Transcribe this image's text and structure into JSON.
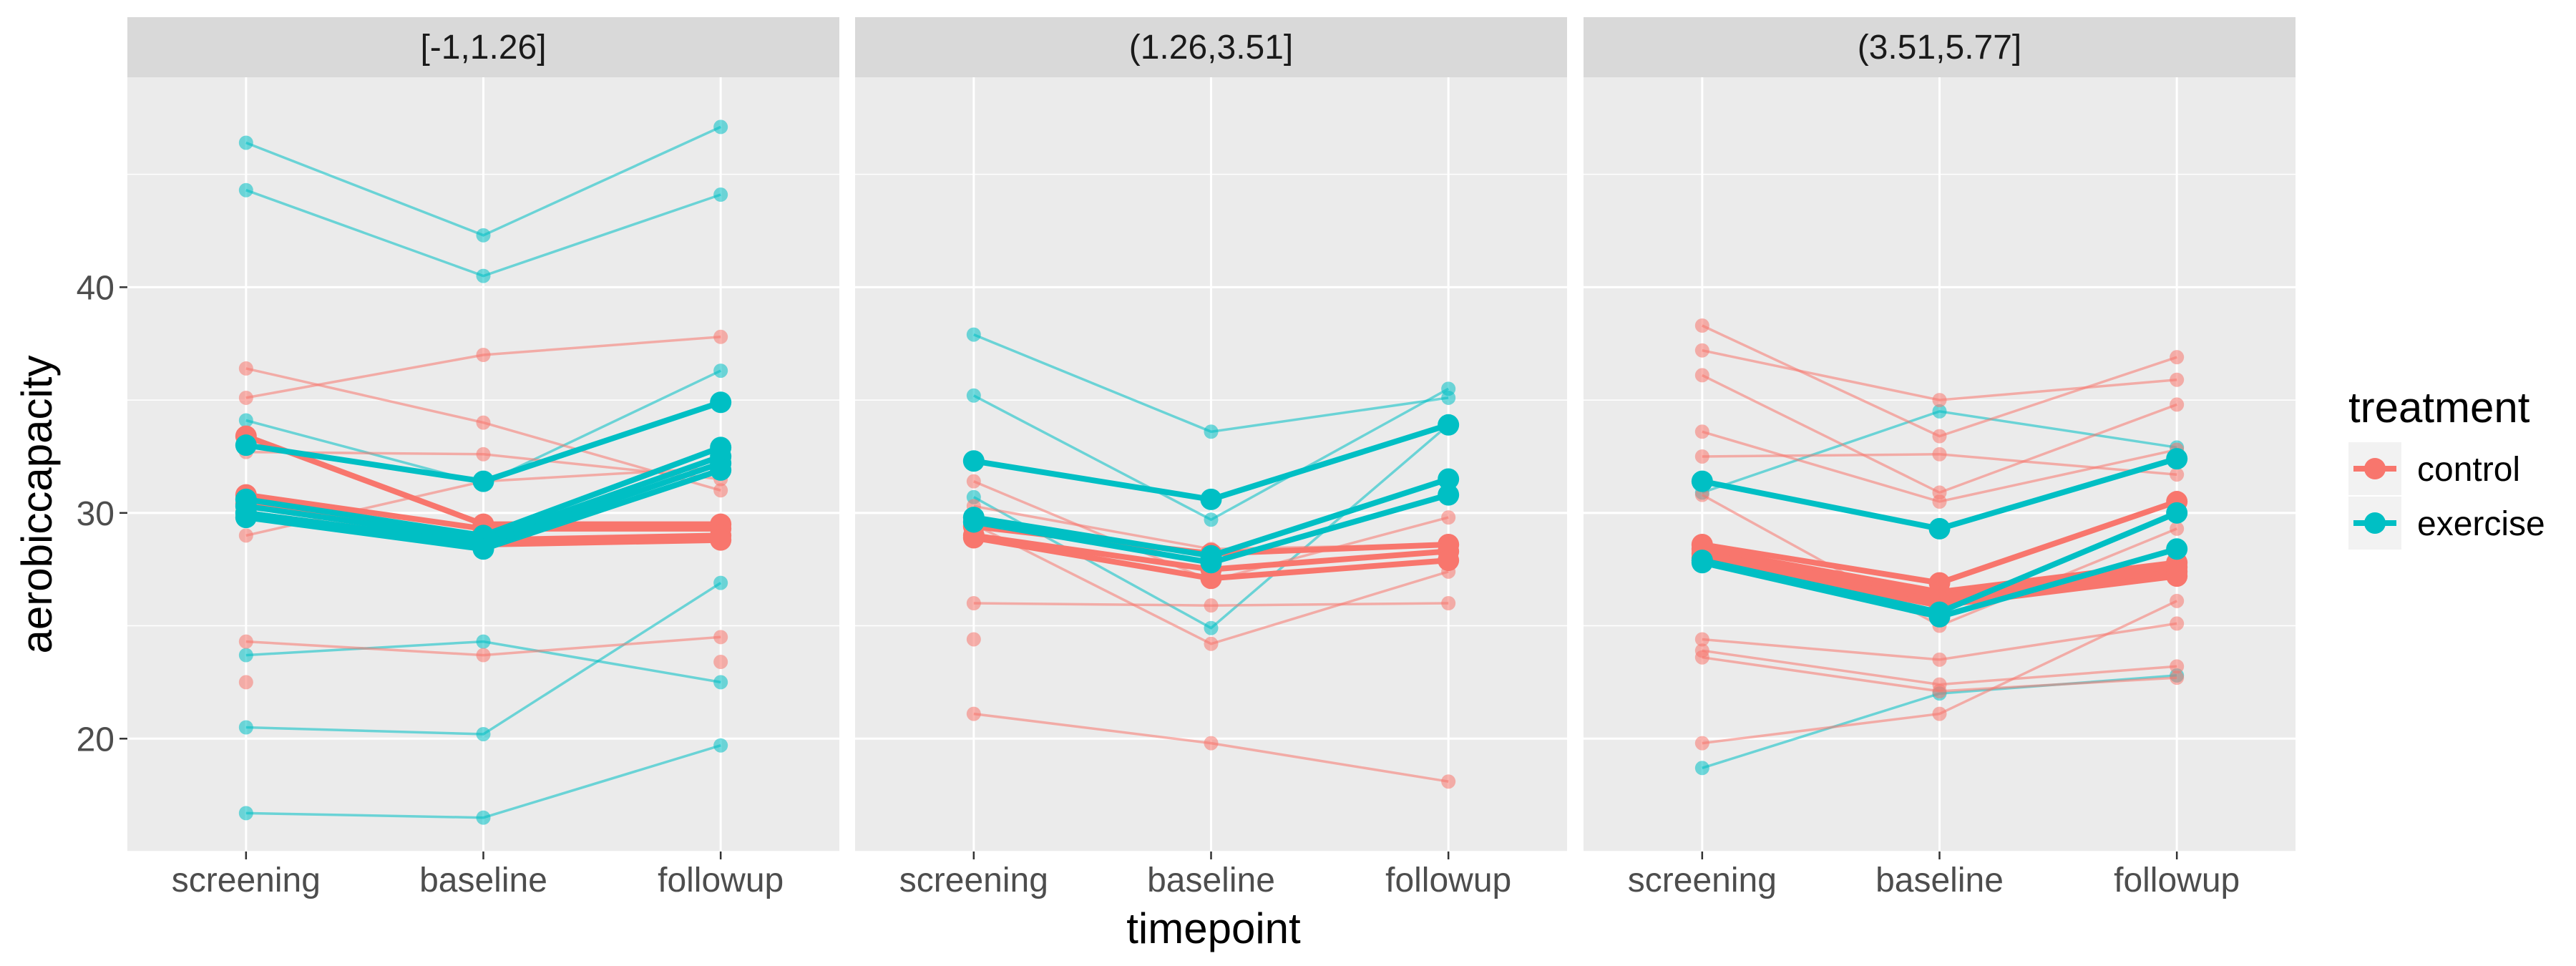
{
  "chart_data": {
    "type": "line",
    "xlabel": "timepoint",
    "ylabel": "aerobiccapacity",
    "categories": [
      "screening",
      "baseline",
      "followup"
    ],
    "ylim": [
      15.0,
      49.3
    ],
    "yticks": [
      20,
      30,
      40
    ],
    "grid": true,
    "legend": {
      "title": "treatment",
      "position": "right",
      "entries": [
        {
          "name": "control",
          "color": "#F8766D"
        },
        {
          "name": "exercise",
          "color": "#00BFC4"
        }
      ]
    },
    "panels": [
      {
        "label": "[-1,1.26]",
        "individuals": [
          {
            "group": "exercise",
            "values": [
              46.4,
              42.3,
              47.1
            ]
          },
          {
            "group": "exercise",
            "values": [
              44.3,
              40.5,
              44.1
            ]
          },
          {
            "group": "exercise",
            "values": [
              34.1,
              31.3,
              36.3
            ]
          },
          {
            "group": "exercise",
            "values": [
              23.7,
              24.3,
              22.5
            ]
          },
          {
            "group": "exercise",
            "values": [
              20.5,
              20.2,
              26.9
            ]
          },
          {
            "group": "exercise",
            "values": [
              16.7,
              16.5,
              19.7
            ]
          },
          {
            "group": "control",
            "values": [
              36.4,
              34.0,
              31.0
            ]
          },
          {
            "group": "control",
            "values": [
              35.1,
              37.0,
              37.8
            ]
          },
          {
            "group": "control",
            "values": [
              32.7,
              32.6,
              31.5
            ]
          },
          {
            "group": "control",
            "values": [
              29.0,
              31.4,
              32.0
            ]
          },
          {
            "group": "control",
            "values": [
              24.3,
              23.7,
              24.5
            ]
          },
          {
            "group": "control",
            "values": [
              22.5,
              null,
              23.4
            ]
          }
        ],
        "model_lines": [
          {
            "group": "control",
            "values": [
              33.4,
              29.5,
              29.5
            ]
          },
          {
            "group": "control",
            "values": [
              30.8,
              29.3,
              29.3
            ]
          },
          {
            "group": "control",
            "values": [
              30.4,
              28.8,
              29.0
            ]
          },
          {
            "group": "control",
            "values": [
              30.0,
              28.6,
              28.8
            ]
          },
          {
            "group": "exercise",
            "values": [
              33.0,
              31.4,
              34.9
            ]
          },
          {
            "group": "exercise",
            "values": [
              30.6,
              29.0,
              32.9
            ]
          },
          {
            "group": "exercise",
            "values": [
              30.3,
              28.8,
              32.5
            ]
          },
          {
            "group": "exercise",
            "values": [
              30.0,
              28.6,
              32.2
            ]
          },
          {
            "group": "exercise",
            "values": [
              29.8,
              28.4,
              31.9
            ]
          }
        ]
      },
      {
        "label": "(1.26,3.51]",
        "individuals": [
          {
            "group": "exercise",
            "values": [
              37.9,
              33.6,
              35.1
            ]
          },
          {
            "group": "exercise",
            "values": [
              35.2,
              29.7,
              35.5
            ]
          },
          {
            "group": "exercise",
            "values": [
              30.7,
              24.9,
              33.9
            ]
          },
          {
            "group": "control",
            "values": [
              31.4,
              27.0,
              29.8
            ]
          },
          {
            "group": "control",
            "values": [
              30.3,
              28.4,
              28.6
            ]
          },
          {
            "group": "control",
            "values": [
              29.5,
              24.2,
              27.4
            ]
          },
          {
            "group": "control",
            "values": [
              26.0,
              25.9,
              26.0
            ]
          },
          {
            "group": "control",
            "values": [
              24.4,
              null,
              null
            ]
          },
          {
            "group": "control",
            "values": [
              21.1,
              19.8,
              18.1
            ]
          }
        ],
        "model_lines": [
          {
            "group": "control",
            "values": [
              29.4,
              28.2,
              28.6
            ]
          },
          {
            "group": "control",
            "values": [
              29.0,
              27.5,
              28.3
            ]
          },
          {
            "group": "control",
            "values": [
              28.9,
              27.1,
              27.9
            ]
          },
          {
            "group": "exercise",
            "values": [
              32.3,
              30.6,
              33.9
            ]
          },
          {
            "group": "exercise",
            "values": [
              29.8,
              28.1,
              31.5
            ]
          },
          {
            "group": "exercise",
            "values": [
              29.6,
              27.8,
              30.8
            ]
          }
        ]
      },
      {
        "label": "(3.51,5.77]",
        "individuals": [
          {
            "group": "exercise",
            "values": [
              30.9,
              34.5,
              32.9
            ]
          },
          {
            "group": "exercise",
            "values": [
              18.7,
              22.0,
              22.8
            ]
          },
          {
            "group": "control",
            "values": [
              38.3,
              33.4,
              36.9
            ]
          },
          {
            "group": "control",
            "values": [
              37.2,
              35.0,
              35.9
            ]
          },
          {
            "group": "control",
            "values": [
              36.1,
              30.9,
              34.8
            ]
          },
          {
            "group": "control",
            "values": [
              33.6,
              30.5,
              32.8
            ]
          },
          {
            "group": "control",
            "values": [
              32.5,
              32.6,
              31.7
            ]
          },
          {
            "group": "control",
            "values": [
              30.8,
              25.0,
              29.3
            ]
          },
          {
            "group": "control",
            "values": [
              24.4,
              23.5,
              25.1
            ]
          },
          {
            "group": "control",
            "values": [
              23.9,
              22.4,
              23.2
            ]
          },
          {
            "group": "control",
            "values": [
              23.6,
              22.1,
              22.7
            ]
          },
          {
            "group": "control",
            "values": [
              19.8,
              21.1,
              26.1
            ]
          }
        ],
        "model_lines": [
          {
            "group": "control",
            "values": [
              28.6,
              26.9,
              30.5
            ]
          },
          {
            "group": "control",
            "values": [
              28.4,
              26.5,
              27.8
            ]
          },
          {
            "group": "control",
            "values": [
              28.2,
              26.3,
              27.6
            ]
          },
          {
            "group": "control",
            "values": [
              28.0,
              26.1,
              27.4
            ]
          },
          {
            "group": "control",
            "values": [
              27.9,
              25.9,
              27.2
            ]
          },
          {
            "group": "exercise",
            "values": [
              31.4,
              29.3,
              32.4
            ]
          },
          {
            "group": "exercise",
            "values": [
              27.9,
              25.6,
              30.0
            ]
          },
          {
            "group": "exercise",
            "values": [
              27.8,
              25.4,
              28.4
            ]
          }
        ]
      }
    ]
  }
}
